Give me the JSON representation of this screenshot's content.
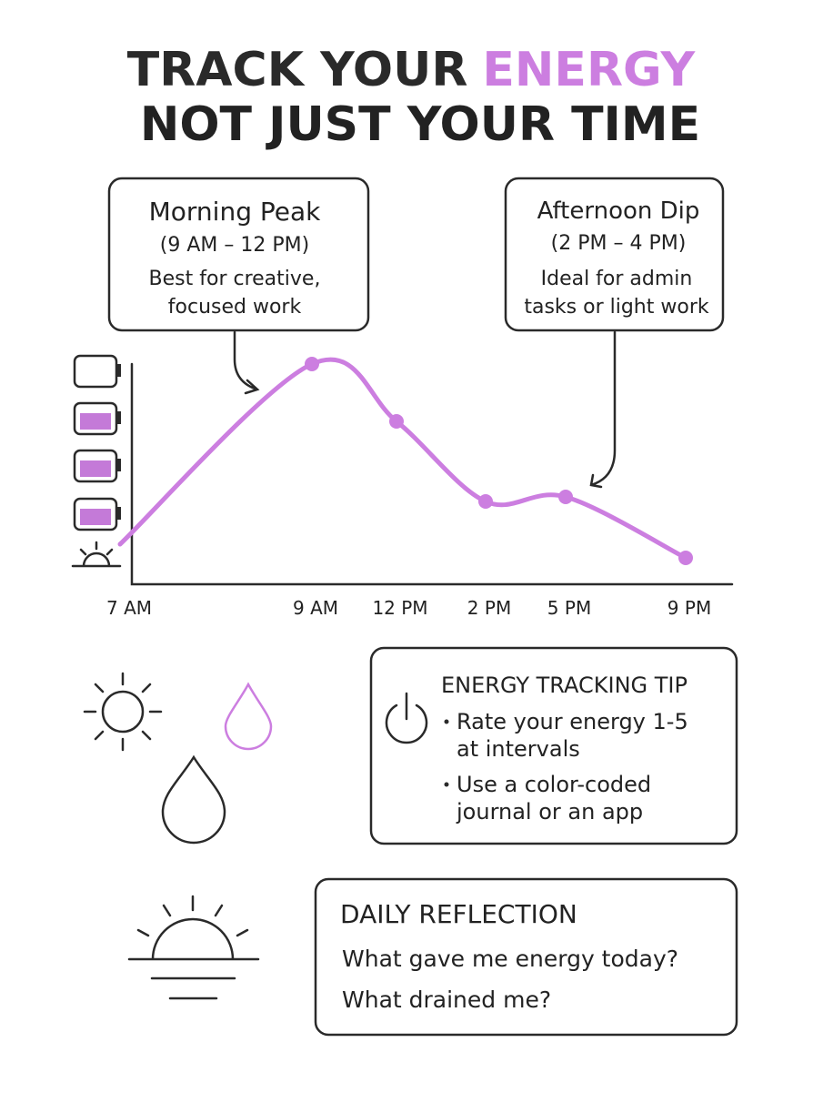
{
  "title": {
    "line1_prefix": "TRACK YOUR",
    "line1_highlight": "ENERGY",
    "line2": "NOT JUST YOUR TIME"
  },
  "callouts": [
    {
      "title": "Morning Peak",
      "time": "(9 AM – 12 PM)",
      "text": [
        "Best for creative,",
        "focused work"
      ]
    },
    {
      "title": "Afternoon Dip",
      "time": "(2 PM – 4 PM)",
      "text": [
        "Ideal for admin",
        "tasks or light work"
      ]
    }
  ],
  "chart_data": {
    "type": "line",
    "categories": [
      "7 AM",
      "9 AM",
      "12 PM",
      "2 PM",
      "5 PM",
      "9 PM"
    ],
    "values": [
      0.84,
      4.8,
      3.54,
      1.78,
      1.88,
      0.54
    ],
    "color": "#cc7ee0",
    "ylim": [
      0,
      5
    ]
  },
  "tip": {
    "title": "ENERGY TRACKING TIP",
    "items": [
      [
        "Rate your energy 1-5",
        "at intervals"
      ],
      [
        "Use a color-coded",
        "journal or an app"
      ]
    ]
  },
  "reflection": {
    "title": "DAILY REFLECTION",
    "questions": [
      "What gave me energy today?",
      "What drained me?"
    ]
  }
}
